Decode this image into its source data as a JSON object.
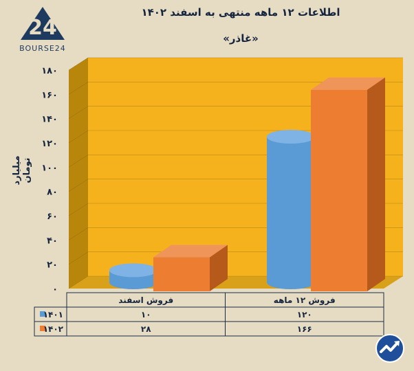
{
  "header": {
    "title": "اطلاعات ۱۲ ماهه منتهی به اسفند ۱۴۰۲",
    "subtitle": "«غاذر»"
  },
  "logo": {
    "text": "BOURSE24",
    "mark": "24"
  },
  "colors": {
    "background": "#e6dcc3",
    "plot": "#f6b21d",
    "wall_side": "#b8860b",
    "series_1401": "#5b9bd5",
    "series_1402": "#ed7d31"
  },
  "chart_data": {
    "type": "bar",
    "categories": [
      "فروش اسفند",
      "فروش ۱۲ ماهه"
    ],
    "series": [
      {
        "name": "۱۴۰۱",
        "values": [
          10,
          120
        ],
        "display": [
          "۱۰",
          "۱۲۰"
        ],
        "shape": "cylinder"
      },
      {
        "name": "۱۴۰۲",
        "values": [
          28,
          166
        ],
        "display": [
          "۲۸",
          "۱۶۶"
        ],
        "shape": "box"
      }
    ],
    "ylabel": "میلیارد تومان",
    "ylim": [
      0,
      180
    ],
    "yticks": [
      "۰",
      "۲۰",
      "۴۰",
      "۶۰",
      "۸۰",
      "۱۰۰",
      "۱۲۰",
      "۱۴۰",
      "۱۶۰",
      "۱۸۰"
    ],
    "table": true,
    "grid": true
  },
  "badge_icon": "trend-arrow-icon"
}
